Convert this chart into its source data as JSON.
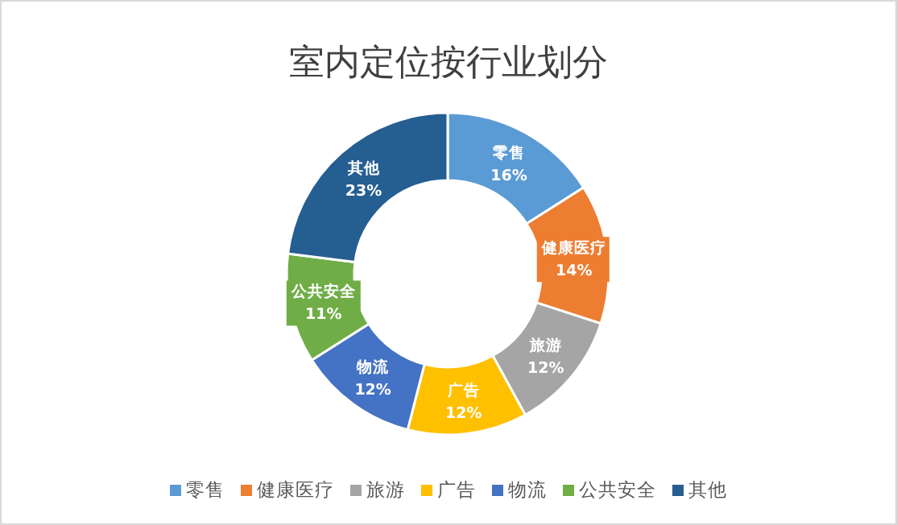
{
  "chart_data": {
    "type": "donut",
    "title": "室内定位按行业划分",
    "categories": [
      "零售",
      "健康医疗",
      "旅游",
      "广告",
      "物流",
      "公共安全",
      "其他"
    ],
    "values": [
      16,
      14,
      12,
      12,
      12,
      11,
      23
    ],
    "value_labels": [
      "16%",
      "14%",
      "12%",
      "12%",
      "12%",
      "11%",
      "23%"
    ],
    "colors": [
      "#5b9bd5",
      "#ed7d31",
      "#a5a5a5",
      "#ffc000",
      "#4472c4",
      "#70ad47",
      "#255e91"
    ],
    "legend": "bottom"
  }
}
